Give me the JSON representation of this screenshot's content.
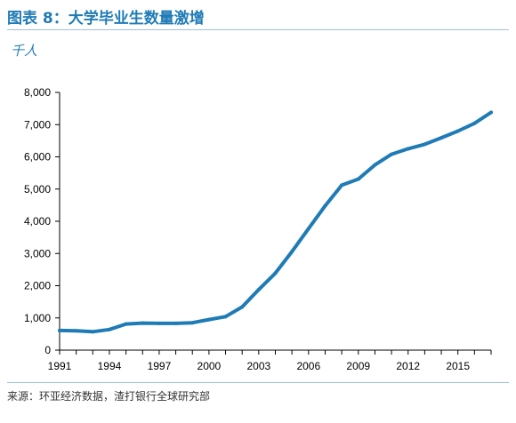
{
  "header": {
    "title": "图表 8：大学毕业生数量激增",
    "unit": "千人"
  },
  "footer": {
    "source": "来源：环亚经济数据，渣打银行全球研究部"
  },
  "chart_data": {
    "type": "line",
    "title": "大学毕业生数量激增",
    "xlabel": "",
    "ylabel": "千人",
    "xlim": [
      1991,
      2017
    ],
    "ylim": [
      0,
      8000
    ],
    "x_ticks": [
      1991,
      1994,
      1997,
      2000,
      2003,
      2006,
      2009,
      2012,
      2015
    ],
    "y_ticks": [
      0,
      1000,
      2000,
      3000,
      4000,
      5000,
      6000,
      7000,
      8000
    ],
    "y_tick_labels": [
      "0",
      "1,000",
      "2,000",
      "3,000",
      "4,000",
      "5,000",
      "6,000",
      "7,000",
      "8,000"
    ],
    "grid": false,
    "colors": {
      "line": "#1f7bb6",
      "axis": "#000000"
    },
    "series": [
      {
        "name": "",
        "x": [
          1991,
          1992,
          1993,
          1994,
          1995,
          1996,
          1997,
          1998,
          1999,
          2000,
          2001,
          2002,
          2003,
          2004,
          2005,
          2006,
          2007,
          2008,
          2009,
          2010,
          2011,
          2012,
          2013,
          2014,
          2015,
          2016,
          2017
        ],
        "values": [
          610,
          600,
          570,
          640,
          810,
          840,
          830,
          830,
          850,
          950,
          1040,
          1340,
          1880,
          2390,
          3060,
          3770,
          4480,
          5120,
          5310,
          5750,
          6080,
          6250,
          6390,
          6590,
          6800,
          7040,
          7380
        ]
      }
    ]
  }
}
